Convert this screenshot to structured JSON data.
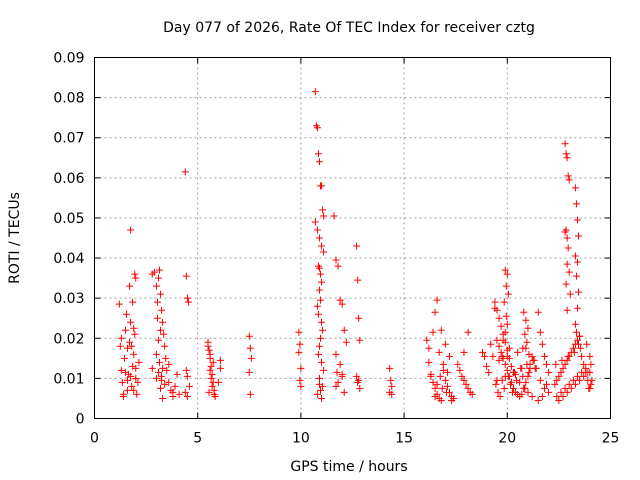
{
  "chart_data": {
    "type": "scatter",
    "title": "Day 077 of 2026, Rate Of TEC Index for receiver cztg",
    "xlabel": "GPS time / hours",
    "ylabel": "ROTI / TECUs",
    "xlim": [
      0,
      25
    ],
    "ylim": [
      0,
      0.09
    ],
    "grid": true,
    "marker": "+",
    "color": "#ff0000",
    "xticks": [
      0,
      5,
      10,
      15,
      20,
      25
    ],
    "xtick_labels": [
      "0",
      "5",
      "10",
      "15",
      "20",
      "25"
    ],
    "yticks": [
      0,
      0.01,
      0.02,
      0.03,
      0.04,
      0.05,
      0.06,
      0.07,
      0.08,
      0.09
    ],
    "ytick_labels": [
      "0",
      "0.01",
      "0.02",
      "0.03",
      "0.04",
      "0.05",
      "0.06",
      "0.07",
      "0.08",
      "0.09"
    ],
    "series": [
      {
        "name": "ROTI",
        "x": [
          1.2,
          1.25,
          1.3,
          1.35,
          1.4,
          1.45,
          1.5,
          1.55,
          1.6,
          1.65,
          1.7,
          1.75,
          1.8,
          1.85,
          1.9,
          1.95,
          2.0,
          2.05,
          2.1,
          2.15,
          1.3,
          1.5,
          1.6,
          1.75,
          1.8,
          1.9,
          1.95,
          2.0,
          1.7,
          1.85,
          1.9,
          1.4,
          1.6,
          2.0,
          1.75,
          2.8,
          2.9,
          3.0,
          3.05,
          3.1,
          3.15,
          3.2,
          3.25,
          3.3,
          3.35,
          3.4,
          3.45,
          3.5,
          3.6,
          3.7,
          3.8,
          3.9,
          4.0,
          4.1,
          3.0,
          3.1,
          3.2,
          3.3,
          3.15,
          3.25,
          3.05,
          3.2,
          3.3,
          2.8,
          3.1,
          3.25,
          3.0,
          3.4,
          3.6,
          3.8,
          4.4,
          4.45,
          4.5,
          4.55,
          4.6,
          4.4,
          4.5,
          4.5,
          4.45,
          5.5,
          5.55,
          5.6,
          5.65,
          5.7,
          5.75,
          5.8,
          5.85,
          5.5,
          5.6,
          5.7,
          5.8,
          5.6,
          5.75,
          5.65,
          5.55,
          6.1,
          6.1,
          6.0,
          7.5,
          7.55,
          7.6,
          7.5,
          7.55,
          9.9,
          9.95,
          10.0,
          9.95,
          10.0,
          9.9,
          10.7,
          10.75,
          10.8,
          10.85,
          10.9,
          10.95,
          11.0,
          11.05,
          11.1,
          10.7,
          10.8,
          10.9,
          11.0,
          11.1,
          10.85,
          10.9,
          10.95,
          11.0,
          10.9,
          10.95,
          10.8,
          10.85,
          11.0,
          11.05,
          10.95,
          10.9,
          10.85,
          11.0,
          11.1,
          10.9,
          11.05,
          10.95,
          10.8,
          11.0,
          10.9,
          11.6,
          11.7,
          11.8,
          11.9,
          12.0,
          12.1,
          12.2,
          11.7,
          11.9,
          12.0,
          11.8,
          11.7,
          12.1,
          11.75,
          12.0,
          12.7,
          12.75,
          12.8,
          12.85,
          12.7,
          12.8,
          12.75,
          12.85,
          14.3,
          14.35,
          14.4,
          14.3,
          14.4,
          16.1,
          16.2,
          16.3,
          16.4,
          16.5,
          16.6,
          16.7,
          16.8,
          16.9,
          17.0,
          17.1,
          17.2,
          17.3,
          17.4,
          16.2,
          16.5,
          16.6,
          16.8,
          17.0,
          17.2,
          16.4,
          16.7,
          16.9,
          17.1,
          16.3,
          16.6,
          16.85,
          17.05,
          17.3,
          16.5,
          16.75,
          17.6,
          17.7,
          17.8,
          17.9,
          18.0,
          18.1,
          18.2,
          18.3,
          17.9,
          18.1,
          18.8,
          18.9,
          19.0,
          19.1,
          19.2,
          19.3,
          19.4,
          19.5,
          19.6,
          19.7,
          19.8,
          19.9,
          20.0,
          20.1,
          20.2,
          20.3,
          20.4,
          20.5,
          20.6,
          20.7,
          20.8,
          20.9,
          21.0,
          21.1,
          21.2,
          21.3,
          21.4,
          19.4,
          19.5,
          19.6,
          19.7,
          19.8,
          19.9,
          20.0,
          20.1,
          20.2,
          20.4,
          20.6,
          20.8,
          21.0,
          21.2,
          19.5,
          19.9,
          20.3,
          20.7,
          21.1,
          19.6,
          20.0,
          20.5,
          20.9,
          19.45,
          19.75,
          20.05,
          20.35,
          20.65,
          20.95,
          21.25,
          19.55,
          19.85,
          20.15,
          20.45,
          20.75,
          21.05,
          21.35,
          19.65,
          20.25,
          20.85,
          19.9,
          20.0,
          19.95,
          20.05,
          19.85,
          19.95,
          20.0,
          19.9,
          19.8,
          20.1,
          19.75,
          20.8,
          20.9,
          21.0,
          20.85,
          20.95,
          20.75,
          21.05,
          21.5,
          21.6,
          21.7,
          21.8,
          21.9,
          22.0,
          21.6,
          21.8,
          22.0,
          21.7,
          21.5,
          21.9,
          22.3,
          22.4,
          22.5,
          22.6,
          22.7,
          22.8,
          22.9,
          23.0,
          23.1,
          23.2,
          23.3,
          23.4,
          23.5,
          23.6,
          23.7,
          23.8,
          23.9,
          24.0,
          22.4,
          22.6,
          22.8,
          23.0,
          23.2,
          23.4,
          23.6,
          23.8,
          22.5,
          22.7,
          22.9,
          23.1,
          23.3,
          23.5,
          23.7,
          23.9,
          22.35,
          22.65,
          22.95,
          23.25,
          23.55,
          23.85,
          22.8,
          22.85,
          22.9,
          22.95,
          23.0,
          22.8,
          22.9,
          22.85,
          22.95,
          22.9,
          23.0,
          22.85,
          23.05,
          22.9,
          23.3,
          23.35,
          23.4,
          23.45,
          23.3,
          23.4,
          23.35,
          23.45,
          23.4,
          23.3,
          23.35,
          23.5,
          23.45,
          24.0,
          24.05,
          24.0,
          24.1,
          24.05,
          23.95
        ],
        "y": [
          0.0285,
          0.018,
          0.012,
          0.009,
          0.006,
          0.015,
          0.022,
          0.026,
          0.007,
          0.011,
          0.019,
          0.024,
          0.008,
          0.013,
          0.016,
          0.021,
          0.01,
          0.006,
          0.009,
          0.014,
          0.02,
          0.0115,
          0.0095,
          0.047,
          0.018,
          0.007,
          0.036,
          0.035,
          0.033,
          0.029,
          0.0225,
          0.0055,
          0.0175,
          0.0125,
          0.0105,
          0.036,
          0.0365,
          0.033,
          0.029,
          0.035,
          0.037,
          0.031,
          0.027,
          0.024,
          0.021,
          0.018,
          0.015,
          0.012,
          0.009,
          0.007,
          0.0065,
          0.008,
          0.011,
          0.006,
          0.016,
          0.0195,
          0.022,
          0.0125,
          0.014,
          0.0095,
          0.025,
          0.0075,
          0.005,
          0.0125,
          0.0115,
          0.0105,
          0.01,
          0.0085,
          0.0135,
          0.0055,
          0.0615,
          0.0355,
          0.03,
          0.029,
          0.008,
          0.0065,
          0.0055,
          0.0105,
          0.012,
          0.019,
          0.017,
          0.015,
          0.013,
          0.011,
          0.009,
          0.007,
          0.0055,
          0.018,
          0.012,
          0.008,
          0.006,
          0.016,
          0.014,
          0.01,
          0.0065,
          0.0145,
          0.0125,
          0.009,
          0.0205,
          0.0175,
          0.015,
          0.0115,
          0.006,
          0.0215,
          0.0185,
          0.0125,
          0.0095,
          0.008,
          0.0165,
          0.0815,
          0.073,
          0.0725,
          0.066,
          0.064,
          0.058,
          0.058,
          0.052,
          0.0505,
          0.049,
          0.047,
          0.045,
          0.043,
          0.0415,
          0.038,
          0.0375,
          0.036,
          0.034,
          0.032,
          0.0295,
          0.028,
          0.026,
          0.024,
          0.022,
          0.02,
          0.018,
          0.016,
          0.014,
          0.012,
          0.01,
          0.008,
          0.007,
          0.006,
          0.005,
          0.0085,
          0.0505,
          0.0395,
          0.038,
          0.0295,
          0.0285,
          0.022,
          0.019,
          0.016,
          0.0135,
          0.011,
          0.009,
          0.008,
          0.0065,
          0.0115,
          0.0105,
          0.043,
          0.0345,
          0.025,
          0.0195,
          0.0105,
          0.0095,
          0.009,
          0.0075,
          0.0125,
          0.0095,
          0.008,
          0.0065,
          0.006,
          0.0195,
          0.014,
          0.011,
          0.009,
          0.0075,
          0.006,
          0.005,
          0.0045,
          0.012,
          0.0095,
          0.008,
          0.0065,
          0.0055,
          0.005,
          0.0175,
          0.0265,
          0.0295,
          0.022,
          0.0185,
          0.0155,
          0.0215,
          0.0165,
          0.0135,
          0.0115,
          0.0105,
          0.0085,
          0.0075,
          0.0065,
          0.0045,
          0.0055,
          0.0105,
          0.0135,
          0.012,
          0.0105,
          0.0095,
          0.0085,
          0.0075,
          0.0065,
          0.006,
          0.0165,
          0.0215,
          0.0165,
          0.0155,
          0.013,
          0.0115,
          0.0185,
          0.0155,
          0.0275,
          0.0195,
          0.018,
          0.0165,
          0.015,
          0.0135,
          0.012,
          0.0105,
          0.009,
          0.0075,
          0.0065,
          0.006,
          0.0055,
          0.006,
          0.0075,
          0.009,
          0.0105,
          0.0125,
          0.0155,
          0.0145,
          0.0125,
          0.029,
          0.027,
          0.025,
          0.023,
          0.021,
          0.019,
          0.017,
          0.015,
          0.013,
          0.011,
          0.009,
          0.0075,
          0.0065,
          0.0055,
          0.0095,
          0.0105,
          0.0115,
          0.0125,
          0.0135,
          0.0145,
          0.0155,
          0.0165,
          0.0175,
          0.0085,
          0.0095,
          0.0105,
          0.0115,
          0.0125,
          0.0135,
          0.0145,
          0.0065,
          0.0075,
          0.0085,
          0.0095,
          0.0105,
          0.0115,
          0.0125,
          0.0055,
          0.0065,
          0.0075,
          0.037,
          0.036,
          0.033,
          0.031,
          0.029,
          0.0255,
          0.0235,
          0.0215,
          0.0195,
          0.0175,
          0.0155,
          0.0265,
          0.0245,
          0.0225,
          0.021,
          0.019,
          0.0175,
          0.016,
          0.0265,
          0.0215,
          0.0185,
          0.0155,
          0.0135,
          0.0115,
          0.0095,
          0.0075,
          0.0065,
          0.0055,
          0.0045,
          0.0085,
          0.0085,
          0.0095,
          0.0105,
          0.0115,
          0.0125,
          0.0135,
          0.0145,
          0.0155,
          0.0165,
          0.0175,
          0.0185,
          0.0195,
          0.0205,
          0.0155,
          0.0135,
          0.0115,
          0.0095,
          0.0075,
          0.0055,
          0.0065,
          0.0075,
          0.0085,
          0.0095,
          0.0105,
          0.0115,
          0.0125,
          0.0045,
          0.0055,
          0.0065,
          0.0075,
          0.0085,
          0.0095,
          0.0105,
          0.0115,
          0.0135,
          0.0145,
          0.0155,
          0.0165,
          0.0175,
          0.0185,
          0.0685,
          0.066,
          0.065,
          0.0605,
          0.0595,
          0.0465,
          0.045,
          0.047,
          0.0425,
          0.0385,
          0.0365,
          0.0335,
          0.031,
          0.027,
          0.0575,
          0.0535,
          0.0495,
          0.0455,
          0.0405,
          0.039,
          0.0355,
          0.0315,
          0.0275,
          0.0235,
          0.0215,
          0.0205,
          0.0185,
          0.0155,
          0.0135,
          0.0115,
          0.0095,
          0.0085,
          0.0075
        ]
      }
    ]
  }
}
